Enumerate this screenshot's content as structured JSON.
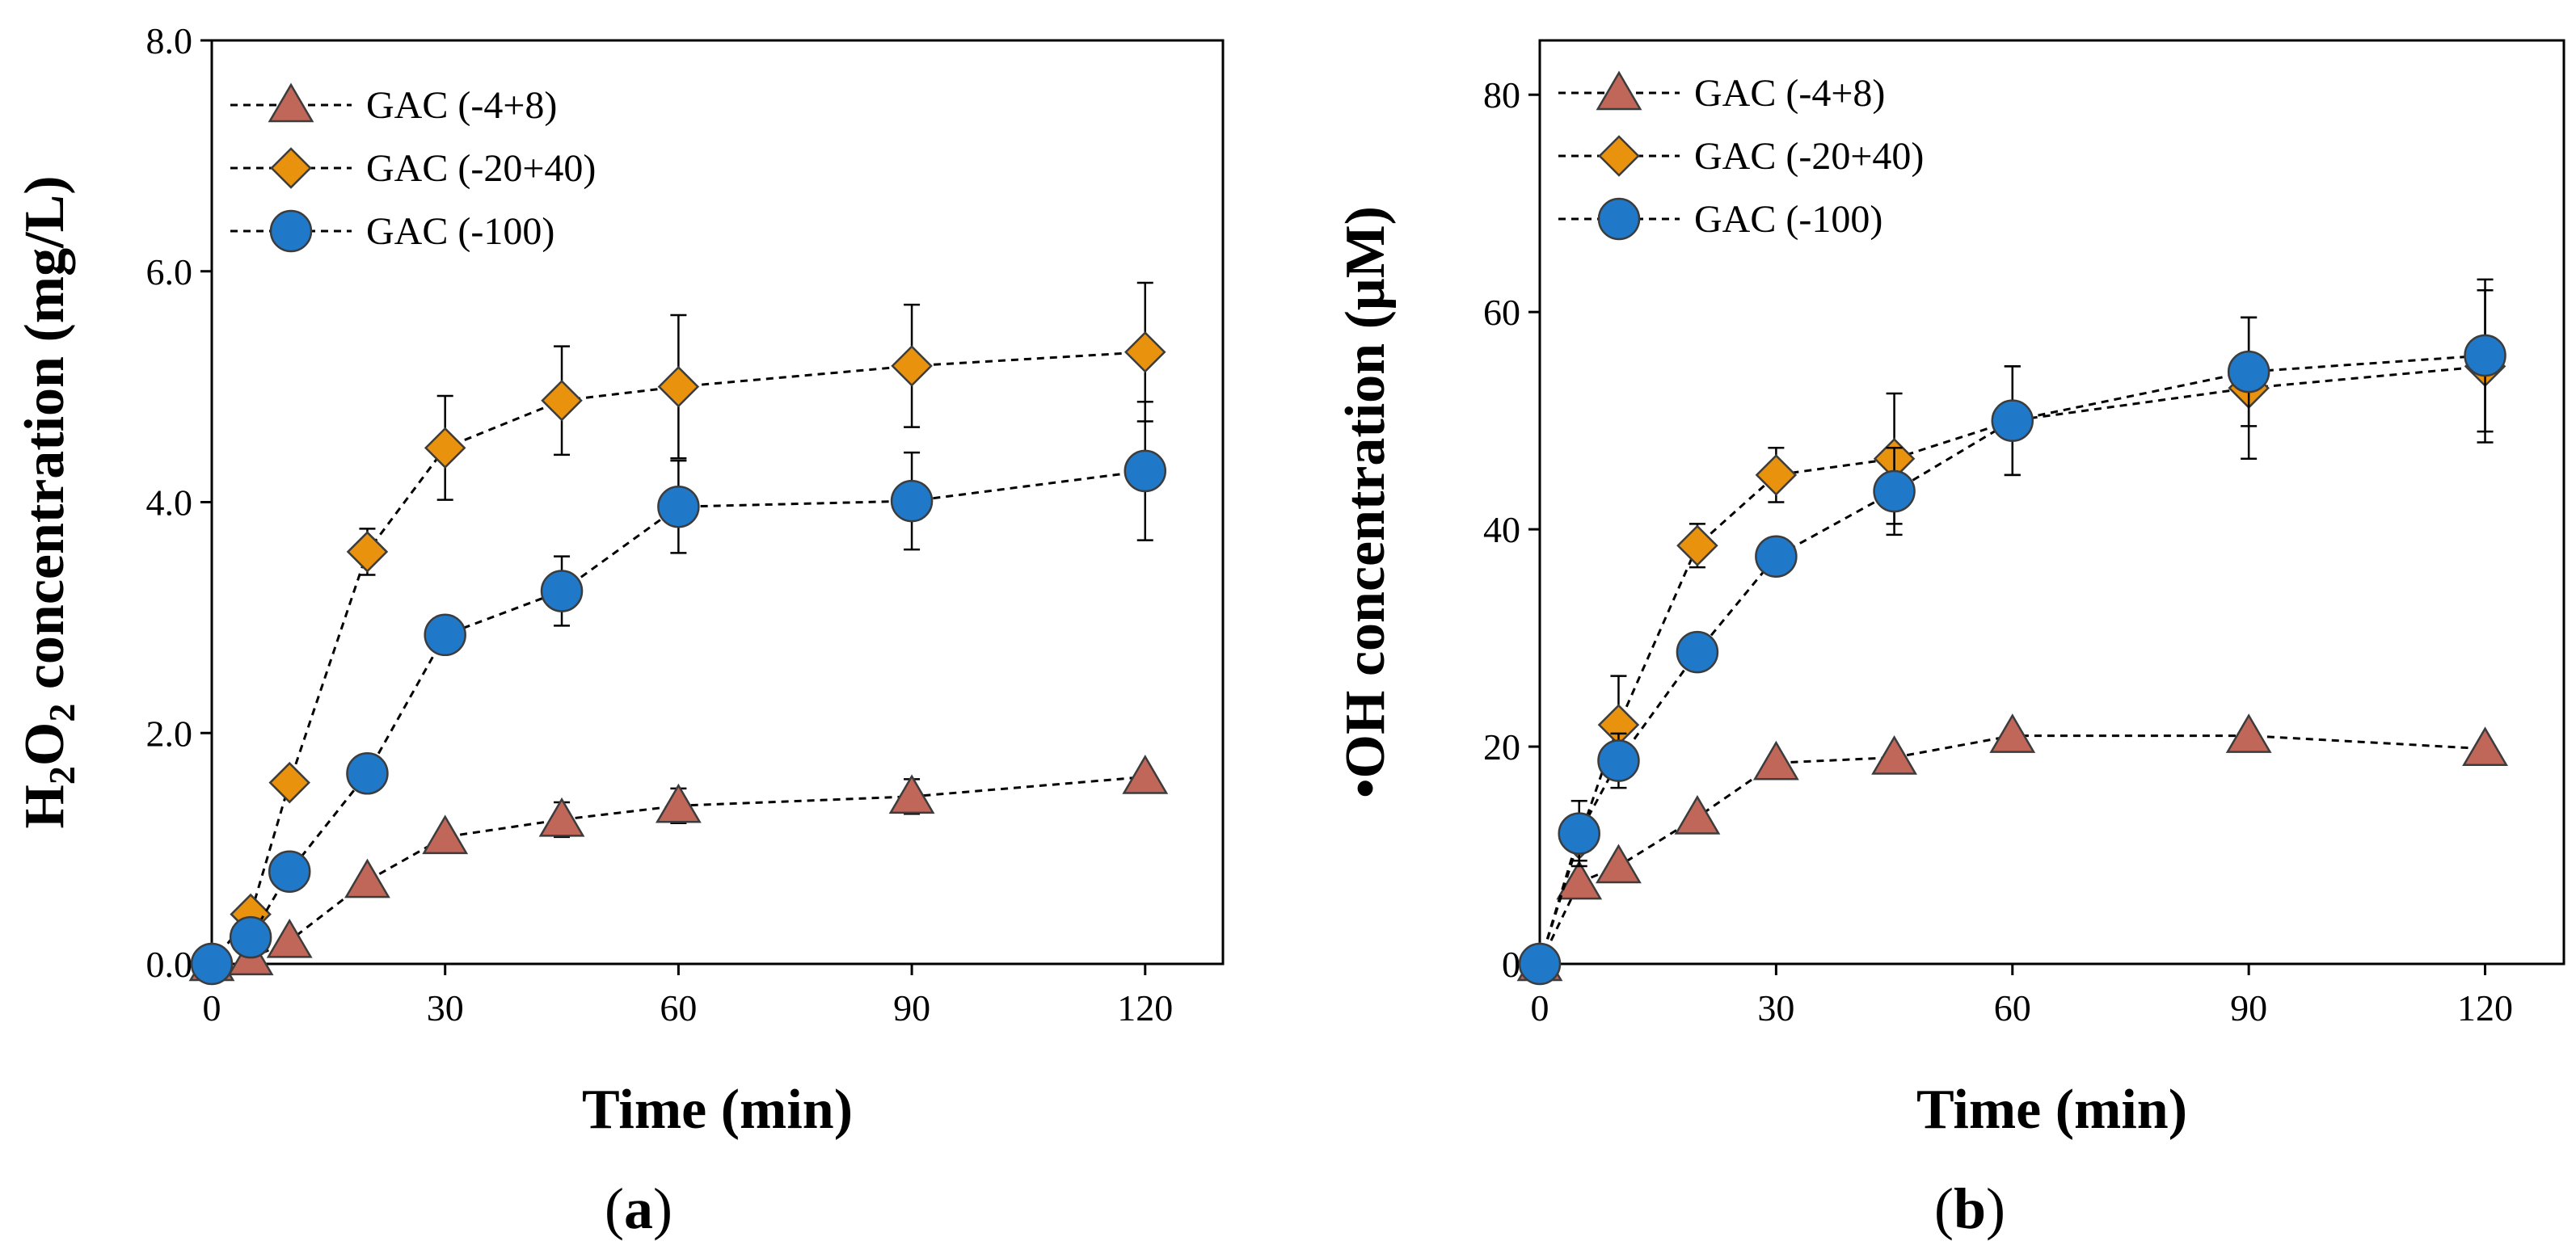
{
  "chart_data": [
    {
      "type": "line",
      "panel_label_open": "(",
      "panel_label_letter": "a",
      "panel_label_close": ")",
      "xlabel": "Time (min)",
      "ylabel_parts": [
        "H",
        "2",
        "O",
        "2",
        " concentration (mg/L)"
      ],
      "xlim": [
        0,
        130
      ],
      "ylim": [
        0,
        8
      ],
      "xticks": [
        0,
        30,
        60,
        90,
        120
      ],
      "yticks": [
        0,
        2,
        4,
        6,
        8
      ],
      "ytick_labels": [
        "0.0",
        "2.0",
        "4.0",
        "6.0",
        "8.0"
      ],
      "legend_position": "top-left",
      "series": [
        {
          "name": "GAC (-4+8)",
          "marker": "triangle",
          "color": "#C0675A",
          "x": [
            0,
            5,
            10,
            20,
            30,
            45,
            60,
            90,
            120
          ],
          "y": [
            0,
            0.05,
            0.2,
            0.72,
            1.1,
            1.25,
            1.37,
            1.45,
            1.62
          ],
          "err": [
            0,
            0,
            0,
            0,
            0,
            0.15,
            0.15,
            0.15,
            0
          ]
        },
        {
          "name": "GAC (-20+40)",
          "marker": "diamond",
          "color": "#E8920E",
          "x": [
            0,
            5,
            10,
            20,
            30,
            45,
            60,
            90,
            120
          ],
          "y": [
            0,
            0.43,
            1.57,
            3.57,
            4.47,
            4.88,
            5.0,
            5.18,
            5.3
          ],
          "err": [
            0,
            0,
            0,
            0.2,
            0.45,
            0.47,
            0.62,
            0.53,
            0.6
          ]
        },
        {
          "name": "GAC (-100)",
          "marker": "circle",
          "color": "#1F78C8",
          "x": [
            0,
            5,
            10,
            20,
            30,
            45,
            60,
            90,
            120
          ],
          "y": [
            0,
            0.23,
            0.8,
            1.65,
            2.85,
            3.23,
            3.96,
            4.01,
            4.27
          ],
          "err": [
            0,
            0,
            0,
            0,
            0,
            0.3,
            0.4,
            0.42,
            0.6
          ]
        }
      ]
    },
    {
      "type": "line",
      "panel_label_open": "(",
      "panel_label_letter": "b",
      "panel_label_close": ")",
      "xlabel": "Time (min)",
      "ylabel_parts": [
        "•OH concentration (μM)"
      ],
      "xlim": [
        0,
        130
      ],
      "ylim": [
        0,
        85
      ],
      "xticks": [
        0,
        30,
        60,
        90,
        120
      ],
      "yticks": [
        0,
        20,
        40,
        60,
        80
      ],
      "ytick_labels": [
        "0",
        "20",
        "40",
        "60",
        "80"
      ],
      "legend_position": "top-left",
      "series": [
        {
          "name": "GAC (-4+8)",
          "marker": "triangle",
          "color": "#C0675A",
          "x": [
            0,
            5,
            10,
            20,
            30,
            45,
            60,
            90,
            120
          ],
          "y": [
            0,
            7.5,
            9,
            13.5,
            18.5,
            19,
            21,
            21,
            19.8
          ],
          "err": [
            0,
            0,
            0,
            0,
            0,
            0,
            0,
            0,
            0
          ]
        },
        {
          "name": "GAC (-20+40)",
          "marker": "diamond",
          "color": "#E8920E",
          "x": [
            0,
            5,
            10,
            20,
            30,
            45,
            60,
            90,
            120
          ],
          "y": [
            0,
            11.5,
            22,
            38.5,
            45,
            46.5,
            50,
            53,
            55
          ],
          "err": [
            0,
            2,
            4.5,
            2,
            2.5,
            6,
            5,
            6.5,
            7
          ]
        },
        {
          "name": "GAC (-100)",
          "marker": "circle",
          "color": "#1F78C8",
          "x": [
            0,
            5,
            10,
            20,
            30,
            45,
            60,
            90,
            120
          ],
          "y": [
            0,
            12,
            18.7,
            28.7,
            37.5,
            43.5,
            50,
            54.5,
            56
          ],
          "err": [
            0,
            3,
            2.5,
            0,
            0,
            4,
            5,
            5,
            7
          ]
        }
      ]
    }
  ]
}
